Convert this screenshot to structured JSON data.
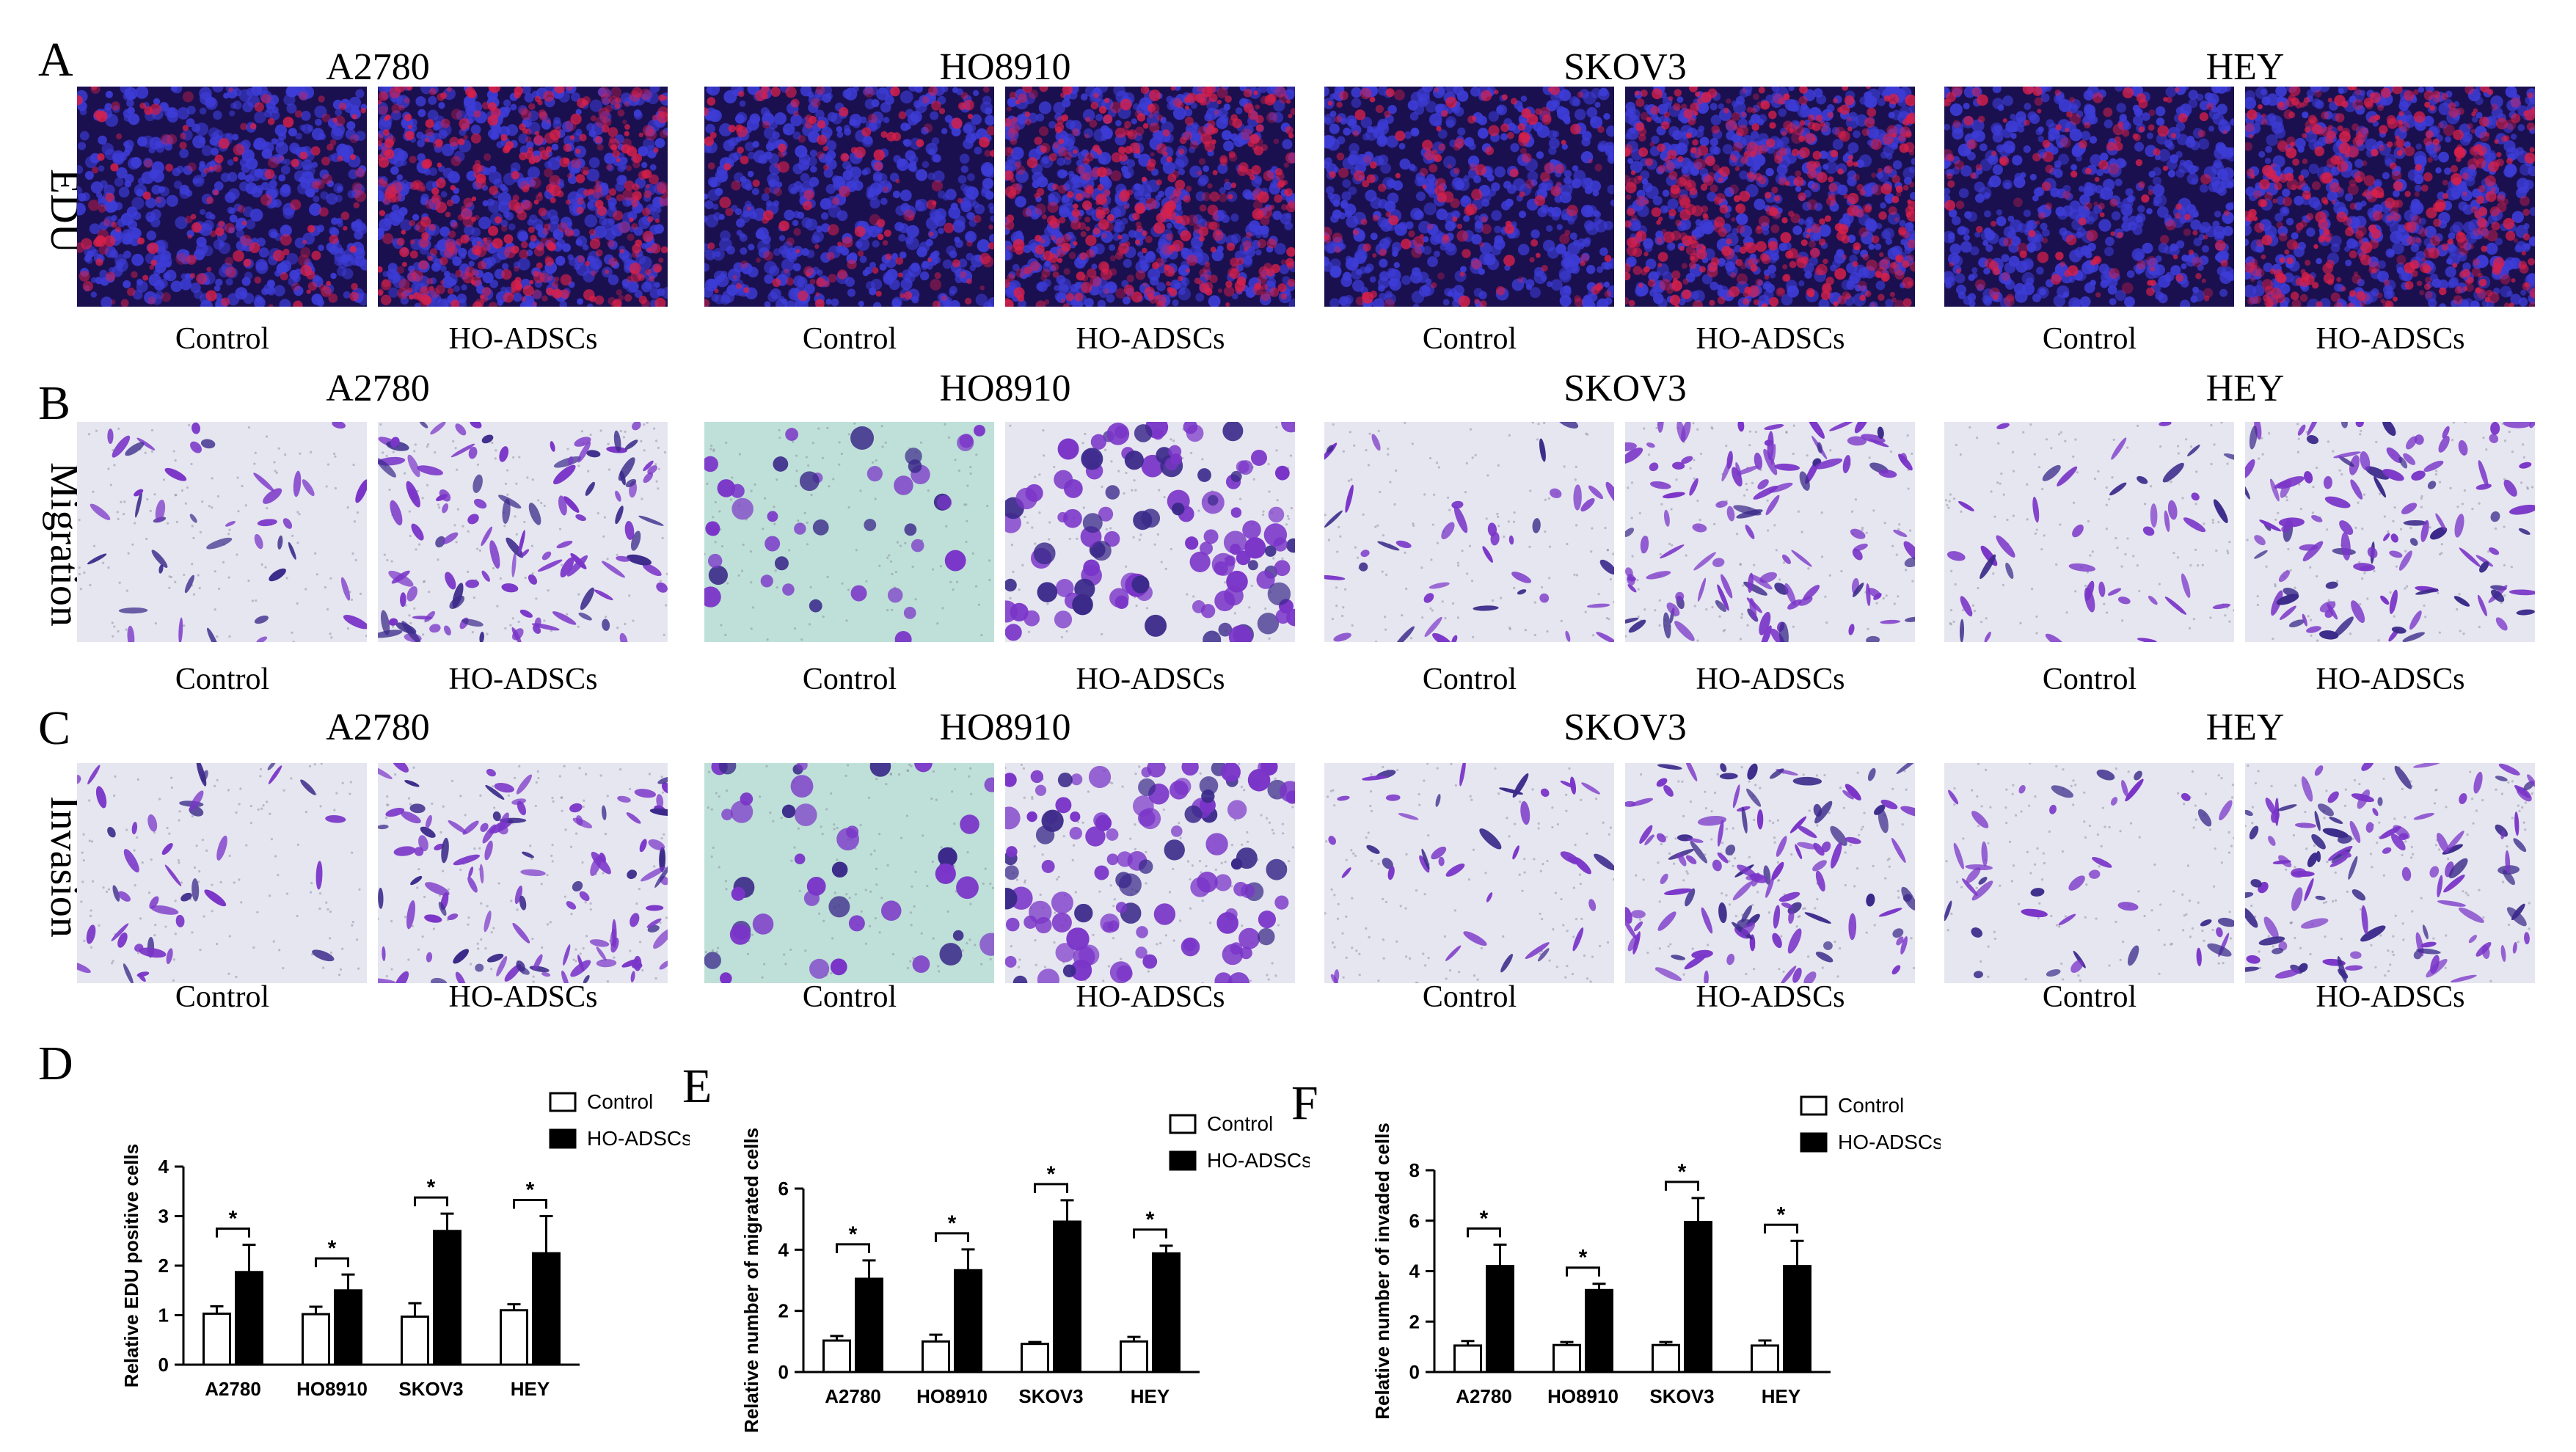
{
  "panel_letters": [
    "A",
    "B",
    "C",
    "D",
    "E",
    "F"
  ],
  "cell_lines": [
    "A2780",
    "HO8910",
    "SKOV3",
    "HEY"
  ],
  "conditions": [
    "Control",
    "HO-ADSCs"
  ],
  "rows": [
    {
      "label": "EDU",
      "stain": "fluorescence"
    },
    {
      "label": "Migration",
      "stain": "crystal-violet"
    },
    {
      "label": "Invasion",
      "stain": "crystal-violet"
    }
  ],
  "colors": {
    "fluor_bg": "#1a1050",
    "fluor_blue": "#3d3cd6",
    "fluor_red": "#d8204a",
    "cv_bg": "#e6e6f0",
    "cv_cyan_bg": "#bfe0d8",
    "cv_purple": "#7a35c8",
    "cv_dark": "#3b2a8a",
    "bar_control": "#ffffff",
    "bar_treat": "#000000"
  },
  "chart_data": [
    {
      "type": "bar",
      "ylabel": "Relative EDU positive cells",
      "xlabel": "",
      "categories": [
        "A2780",
        "HO8910",
        "SKOV3",
        "HEY"
      ],
      "ylim": [
        0,
        4
      ],
      "yticks": [
        0,
        1,
        2,
        3,
        4
      ],
      "legend_position": "top-right",
      "series": [
        {
          "name": "Control",
          "values": [
            1.03,
            1.02,
            0.97,
            1.1
          ],
          "errors": [
            0.15,
            0.15,
            0.27,
            0.12
          ]
        },
        {
          "name": "HO-ADSCs",
          "values": [
            1.87,
            1.5,
            2.7,
            2.25
          ],
          "errors": [
            0.55,
            0.32,
            0.35,
            0.75
          ]
        }
      ],
      "significance": [
        "*",
        "*",
        "*",
        "*"
      ]
    },
    {
      "type": "bar",
      "ylabel": "Relative number of migrated  cells",
      "xlabel": "",
      "categories": [
        "A2780",
        "HO8910",
        "SKOV3",
        "HEY"
      ],
      "ylim": [
        0,
        6
      ],
      "yticks": [
        0,
        2,
        4,
        6
      ],
      "legend_position": "top-right",
      "series": [
        {
          "name": "Control",
          "values": [
            1.03,
            1.0,
            0.92,
            1.0
          ],
          "errors": [
            0.15,
            0.22,
            0.06,
            0.15
          ]
        },
        {
          "name": "HO-ADSCs",
          "values": [
            3.05,
            3.33,
            4.92,
            3.88
          ],
          "errors": [
            0.6,
            0.68,
            0.7,
            0.25
          ]
        }
      ],
      "significance": [
        "*",
        "*",
        "*",
        "*"
      ]
    },
    {
      "type": "bar",
      "ylabel": "Relative number of invaded  cells",
      "xlabel": "",
      "categories": [
        "A2780",
        "HO8910",
        "SKOV3",
        "HEY"
      ],
      "ylim": [
        0,
        8
      ],
      "yticks": [
        0,
        2,
        4,
        6,
        8
      ],
      "legend_position": "top-right",
      "series": [
        {
          "name": "Control",
          "values": [
            1.05,
            1.07,
            1.07,
            1.05
          ],
          "errors": [
            0.18,
            0.12,
            0.12,
            0.2
          ]
        },
        {
          "name": "HO-ADSCs",
          "values": [
            4.2,
            3.25,
            5.95,
            4.2
          ],
          "errors": [
            0.85,
            0.25,
            0.95,
            1.0
          ]
        }
      ],
      "significance": [
        "*",
        "*",
        "*",
        "*"
      ]
    }
  ]
}
